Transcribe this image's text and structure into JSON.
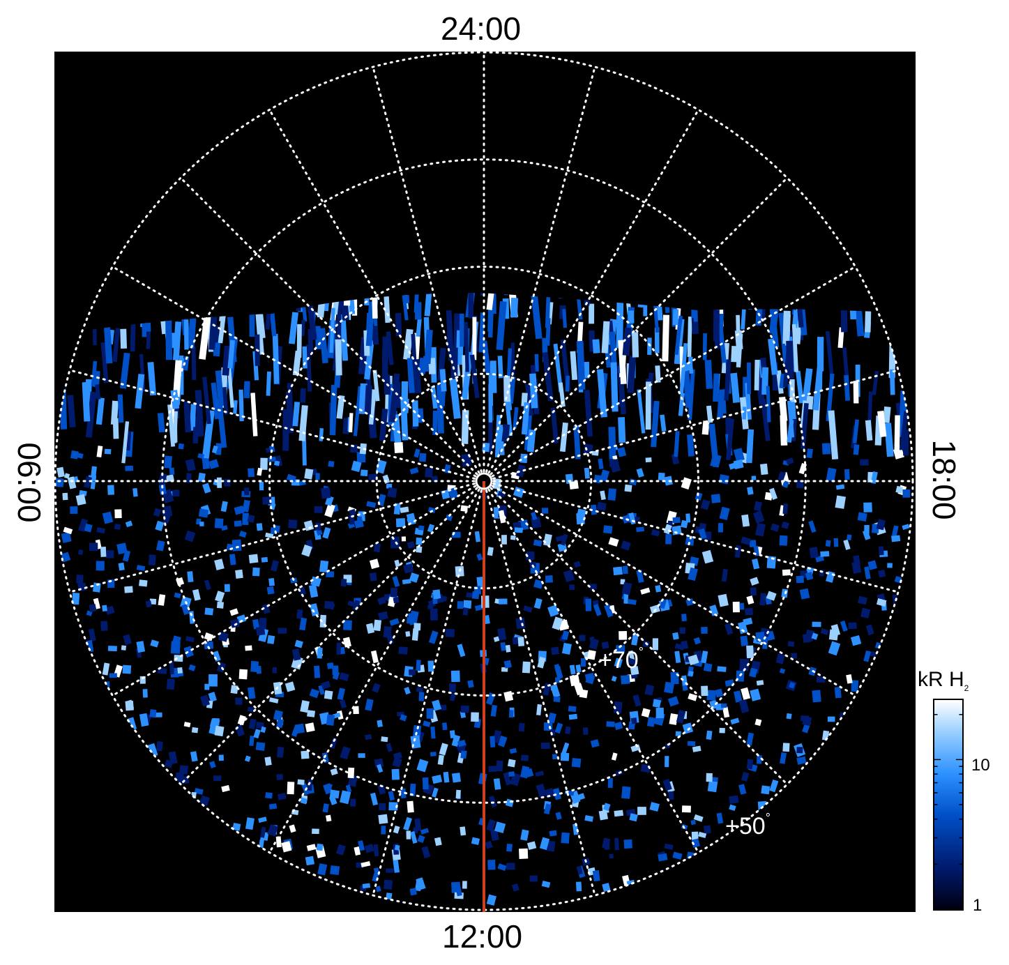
{
  "local_time_labels": {
    "top": "24:00",
    "bottom": "12:00",
    "left": "06:00",
    "right": "18:00"
  },
  "latitude_labels": [
    {
      "text": "+70",
      "unit": "°"
    },
    {
      "text": "+50",
      "unit": "°"
    }
  ],
  "colorbar": {
    "title_main": "kR H",
    "title_sub": "2",
    "tick_labels": [
      "10",
      "1"
    ],
    "scale": "log",
    "range": [
      1,
      25
    ],
    "colors": [
      "#000010",
      "#001a6e",
      "#0050c8",
      "#2d92ff",
      "#9bd0ff",
      "#ffffff"
    ]
  },
  "grid": {
    "style": "dotted",
    "color": "#ffffff",
    "lat_circles_deg": [
      80,
      70,
      60,
      50
    ],
    "lon_spokes_hours": [
      0,
      1,
      2,
      3,
      4,
      5,
      6,
      7,
      8,
      9,
      10,
      11,
      12,
      13,
      14,
      15,
      16,
      17,
      18,
      19,
      20,
      21,
      22,
      23
    ]
  },
  "highlight_meridian": {
    "local_time": "12:00",
    "color": "#d0401c"
  },
  "background_color": "#000000"
}
